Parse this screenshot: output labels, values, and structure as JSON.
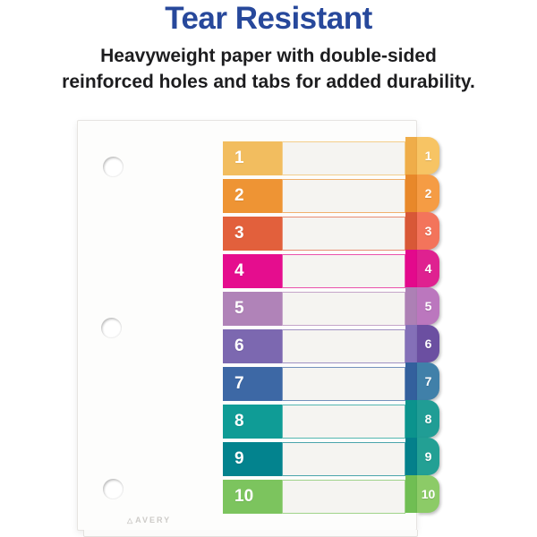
{
  "headline": "Tear Resistant",
  "subheadline": {
    "line1": "Heavyweight paper with double-sided",
    "line2": "reinforced holes and tabs for added durability."
  },
  "brand": "AVERY",
  "colors": {
    "headline": "#27489b",
    "body_text": "#1d1d1f",
    "paper": "#fdfdfc",
    "row_fill": "#f5f4f1",
    "number_text": "#ffffff"
  },
  "divider": {
    "tab_count": 10,
    "hole_count": 3,
    "tabs": [
      {
        "label": "1",
        "block": "#f2bd5f",
        "tab": "#f7c464",
        "strip": "#efad49"
      },
      {
        "label": "2",
        "block": "#ee9434",
        "tab": "#f59c44",
        "strip": "#e8882a"
      },
      {
        "label": "3",
        "block": "#e2603c",
        "tab": "#f3745b",
        "strip": "#d85837"
      },
      {
        "label": "4",
        "block": "#e50d8e",
        "tab": "#df2190",
        "strip": "#e3098c"
      },
      {
        "label": "5",
        "block": "#b083b8",
        "tab": "#bb77be",
        "strip": "#ad80b5"
      },
      {
        "label": "6",
        "block": "#7c68b0",
        "tab": "#6b4fa1",
        "strip": "#8470b8"
      },
      {
        "label": "7",
        "block": "#3d68a5",
        "tab": "#4080a9",
        "strip": "#33609d"
      },
      {
        "label": "8",
        "block": "#0f9c96",
        "tab": "#209d95",
        "strip": "#0b938d"
      },
      {
        "label": "9",
        "block": "#03838e",
        "tab": "#23a094",
        "strip": "#04808b"
      },
      {
        "label": "10",
        "block": "#7cc45e",
        "tab": "#8ccb67",
        "strip": "#70be53"
      }
    ]
  }
}
